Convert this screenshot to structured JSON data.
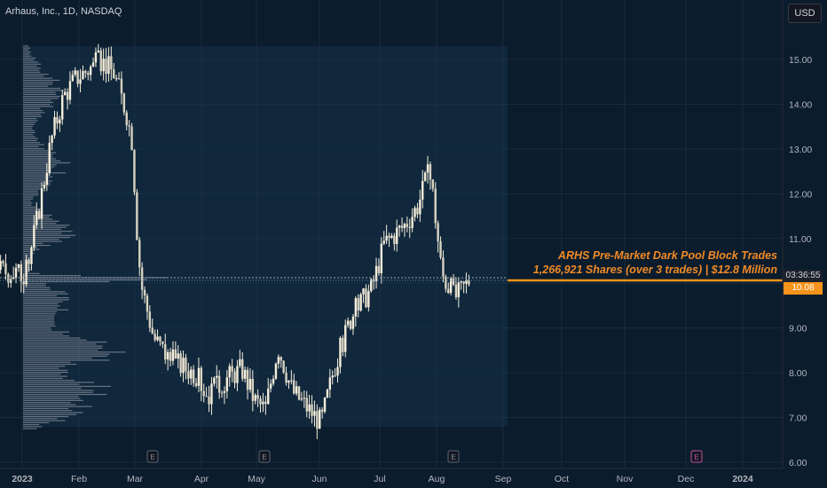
{
  "header": {
    "title": "Arhaus, Inc., 1D, NASDAQ"
  },
  "currency_button": "USD",
  "annotation": {
    "line1": "ARHS Pre-Market Dark Pool Block Trades",
    "line2": "1,266,921 Shares (over 3 trades) | $12.8 Million"
  },
  "price_badges": {
    "countdown": "03:36:55",
    "last_price": "10.08"
  },
  "colors": {
    "background": "#0b1c2c",
    "candle": "#f5eedb",
    "accent": "#f7931a",
    "volume_profile": "#b2b5be",
    "text": "#d1d4dc"
  },
  "chart_data": {
    "type": "candlestick",
    "title": "Arhaus, Inc., 1D, NASDAQ",
    "xlabel": "",
    "ylabel": "",
    "ylim": [
      5.9,
      15.6
    ],
    "y_ticks": [
      "6.00",
      "7.00",
      "8.00",
      "9.00",
      "10.00",
      "11.00",
      "12.00",
      "13.00",
      "14.00",
      "15.00"
    ],
    "x_ticks": [
      "2023",
      "Feb",
      "Mar",
      "Apr",
      "May",
      "Jun",
      "Jul",
      "Aug",
      "Sep",
      "Oct",
      "Nov",
      "Dec",
      "2024"
    ],
    "last_price": 10.08,
    "earnings_markers": [
      "Mar",
      "May",
      "Aug",
      "Nov"
    ],
    "price_path": [
      [
        "2022-12-20",
        10.3
      ],
      [
        "2023-01-03",
        10.2
      ],
      [
        "2023-01-10",
        11.6
      ],
      [
        "2023-01-17",
        13.2
      ],
      [
        "2023-01-24",
        14.2
      ],
      [
        "2023-01-31",
        14.6
      ],
      [
        "2023-02-07",
        14.8
      ],
      [
        "2023-02-14",
        15.0
      ],
      [
        "2023-02-21",
        14.7
      ],
      [
        "2023-02-28",
        13.8
      ],
      [
        "2023-03-03",
        13.2
      ],
      [
        "2023-03-06",
        11.0
      ],
      [
        "2023-03-08",
        10.0
      ],
      [
        "2023-03-15",
        8.8
      ],
      [
        "2023-03-24",
        8.3
      ],
      [
        "2023-04-07",
        8.0
      ],
      [
        "2023-04-14",
        7.5
      ],
      [
        "2023-04-25",
        7.9
      ],
      [
        "2023-05-03",
        8.1
      ],
      [
        "2023-05-10",
        7.4
      ],
      [
        "2023-05-16",
        7.2
      ],
      [
        "2023-05-23",
        8.6
      ],
      [
        "2023-05-31",
        7.6
      ],
      [
        "2023-06-09",
        7.2
      ],
      [
        "2023-06-16",
        6.9
      ],
      [
        "2023-06-23",
        8.1
      ],
      [
        "2023-07-03",
        9.3
      ],
      [
        "2023-07-14",
        9.9
      ],
      [
        "2023-07-21",
        10.9
      ],
      [
        "2023-08-01",
        11.3
      ],
      [
        "2023-08-08",
        11.7
      ],
      [
        "2023-08-15",
        12.5
      ],
      [
        "2023-08-17",
        12.0
      ],
      [
        "2023-08-22",
        10.2
      ],
      [
        "2023-08-29",
        9.7
      ],
      [
        "2023-09-01",
        9.8
      ],
      [
        "2023-09-06",
        10.08
      ]
    ],
    "volume_profile": {
      "peak_price": 10.1,
      "secondary_peaks": [
        11.2,
        8.5,
        7.6
      ]
    }
  }
}
